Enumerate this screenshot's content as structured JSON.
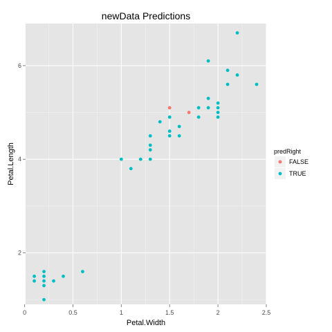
{
  "chart_data": {
    "type": "scatter",
    "title": "newData Predictions",
    "xlabel": "Petal.Width",
    "ylabel": "Petal.Length",
    "xlim": [
      0.01,
      2.5
    ],
    "ylim": [
      0.9,
      6.9
    ],
    "xticks": [
      0,
      0.5,
      1,
      1.5,
      2,
      2.5
    ],
    "yticks": [
      2,
      4,
      6
    ],
    "grid": true,
    "legend": {
      "title": "predRight",
      "placement": "right",
      "entries": [
        {
          "label": "FALSE",
          "color": "#F8766D"
        },
        {
          "label": "TRUE",
          "color": "#00BFC4"
        }
      ]
    },
    "panel_color": "#E5E5E5",
    "series": [
      {
        "name": "FALSE",
        "color": "#F8766D",
        "points": [
          [
            1.5,
            5.1
          ],
          [
            1.7,
            5.0
          ]
        ]
      },
      {
        "name": "TRUE",
        "color": "#00BFC4",
        "points": [
          [
            0.1,
            1.5
          ],
          [
            0.1,
            1.4
          ],
          [
            0.2,
            1.6
          ],
          [
            0.2,
            1.5
          ],
          [
            0.2,
            1.4
          ],
          [
            0.2,
            1.3
          ],
          [
            0.2,
            1.0
          ],
          [
            0.3,
            1.4
          ],
          [
            0.4,
            1.5
          ],
          [
            0.6,
            1.6
          ],
          [
            1.0,
            4.0
          ],
          [
            1.1,
            3.8
          ],
          [
            1.2,
            4.0
          ],
          [
            1.3,
            4.5
          ],
          [
            1.3,
            4.3
          ],
          [
            1.3,
            4.2
          ],
          [
            1.3,
            4.0
          ],
          [
            1.4,
            4.8
          ],
          [
            1.5,
            4.9
          ],
          [
            1.5,
            4.6
          ],
          [
            1.5,
            4.5
          ],
          [
            1.6,
            4.7
          ],
          [
            1.6,
            4.5
          ],
          [
            1.8,
            5.1
          ],
          [
            1.8,
            4.9
          ],
          [
            1.9,
            6.1
          ],
          [
            1.9,
            5.3
          ],
          [
            1.9,
            5.1
          ],
          [
            2.0,
            5.2
          ],
          [
            2.0,
            5.1
          ],
          [
            2.0,
            5.0
          ],
          [
            2.0,
            4.9
          ],
          [
            2.1,
            5.9
          ],
          [
            2.1,
            5.6
          ],
          [
            2.2,
            6.7
          ],
          [
            2.2,
            5.8
          ],
          [
            2.4,
            5.6
          ]
        ]
      }
    ]
  }
}
